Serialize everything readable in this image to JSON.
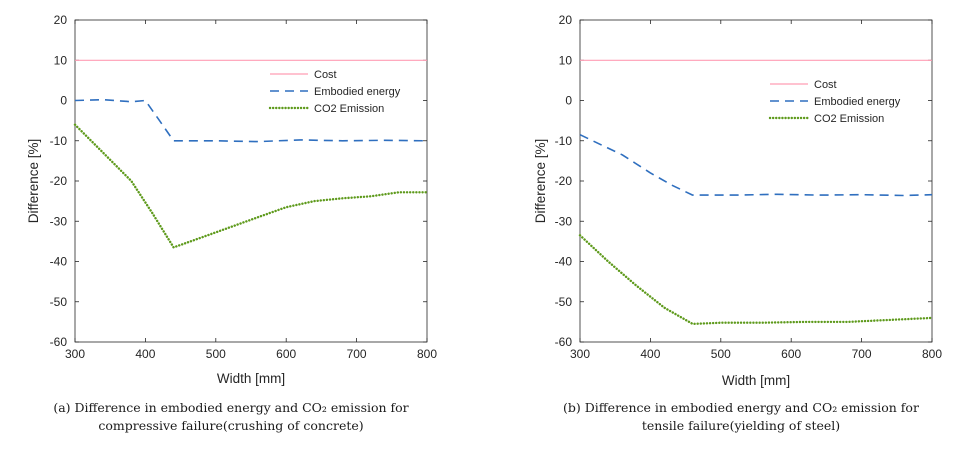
{
  "chart_data": [
    {
      "type": "line",
      "panel": "a",
      "xlabel": "Width [mm]",
      "ylabel": "Difference [%]",
      "xlim": [
        300,
        800
      ],
      "ylim": [
        -60,
        20
      ],
      "xticks": [
        300,
        400,
        500,
        600,
        700,
        800
      ],
      "yticks": [
        20,
        10,
        0,
        -10,
        -20,
        -30,
        -40,
        -50,
        -60
      ],
      "legend_position": "top-right",
      "caption_line1": "(a) Difference in embodied energy and CO₂ emission for",
      "caption_line2": "compressive failure(crushing of concrete)",
      "series": [
        {
          "name": "Cost",
          "style": "solid",
          "color": "#ff9eb5",
          "x": [
            300,
            800
          ],
          "y": [
            10,
            10
          ]
        },
        {
          "name": "Embodied energy",
          "style": "dashed",
          "color": "#2f6fbf",
          "x": [
            300,
            340,
            380,
            400,
            420,
            440,
            500,
            560,
            620,
            680,
            740,
            800
          ],
          "y": [
            0,
            0.2,
            -0.3,
            0,
            -5,
            -10,
            -10,
            -10.2,
            -9.8,
            -10,
            -9.9,
            -10
          ]
        },
        {
          "name": "CO2 Emission",
          "style": "dotted",
          "color": "#5e9a1c",
          "x": [
            300,
            340,
            380,
            410,
            440,
            480,
            520,
            560,
            600,
            640,
            680,
            720,
            760,
            800
          ],
          "y": [
            -6,
            -13,
            -20,
            -28,
            -36.5,
            -34,
            -31.5,
            -29,
            -26.5,
            -25,
            -24.3,
            -23.8,
            -22.8,
            -22.8
          ]
        }
      ]
    },
    {
      "type": "line",
      "panel": "b",
      "xlabel": "Width [mm]",
      "ylabel": "Difference [%]",
      "xlim": [
        300,
        800
      ],
      "ylim": [
        -60,
        20
      ],
      "xticks": [
        300,
        400,
        500,
        600,
        700,
        800
      ],
      "yticks": [
        20,
        10,
        0,
        -10,
        -20,
        -30,
        -40,
        -50,
        -60
      ],
      "legend_position": "top-right",
      "caption_line1": "(b) Difference in embodied energy and CO₂ emission for",
      "caption_line2": "tensile failure(yielding of steel)",
      "series": [
        {
          "name": "Cost",
          "style": "solid",
          "color": "#ff9eb5",
          "x": [
            300,
            800
          ],
          "y": [
            10,
            10
          ]
        },
        {
          "name": "Embodied energy",
          "style": "dashed",
          "color": "#2f6fbf",
          "x": [
            300,
            330,
            360,
            400,
            430,
            460,
            520,
            580,
            640,
            700,
            760,
            800
          ],
          "y": [
            -8.5,
            -11,
            -13.5,
            -18,
            -21,
            -23.5,
            -23.5,
            -23.3,
            -23.5,
            -23.4,
            -23.6,
            -23.4
          ]
        },
        {
          "name": "CO2 Emission",
          "style": "dotted",
          "color": "#5e9a1c",
          "x": [
            300,
            340,
            380,
            420,
            460,
            500,
            560,
            620,
            680,
            740,
            800
          ],
          "y": [
            -33.5,
            -40,
            -46,
            -51.5,
            -55.5,
            -55.2,
            -55.2,
            -55,
            -55,
            -54.5,
            -54
          ]
        }
      ]
    }
  ]
}
